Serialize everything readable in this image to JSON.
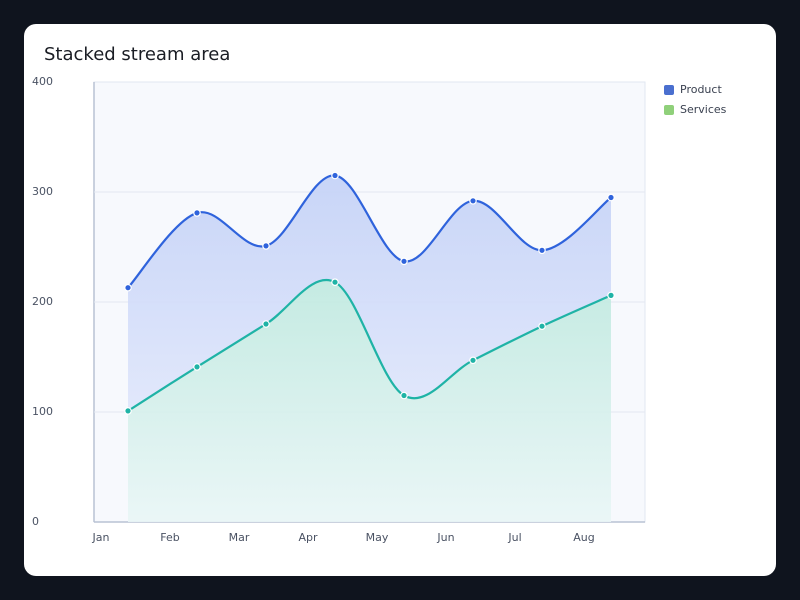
{
  "chart_data": {
    "type": "stacked-area",
    "title": "Stacked stream area",
    "categories": [
      "Jan",
      "Feb",
      "Mar",
      "Apr",
      "May",
      "Jun",
      "Jul",
      "Aug"
    ],
    "series": [
      {
        "name": "Services",
        "color": "#1fb3a6",
        "legend_color": "#8fd07a",
        "values": [
          101,
          141,
          180,
          218,
          115,
          147,
          178,
          206
        ]
      },
      {
        "name": "Product",
        "color": "#2f63dc",
        "legend_color": "#4a6fcf",
        "values": [
          112,
          140,
          71,
          97,
          122,
          145,
          69,
          89
        ]
      }
    ],
    "ylim": [
      0,
      400
    ],
    "yticks": [
      0,
      100,
      200,
      300,
      400
    ],
    "grid": true,
    "legend": "right"
  }
}
